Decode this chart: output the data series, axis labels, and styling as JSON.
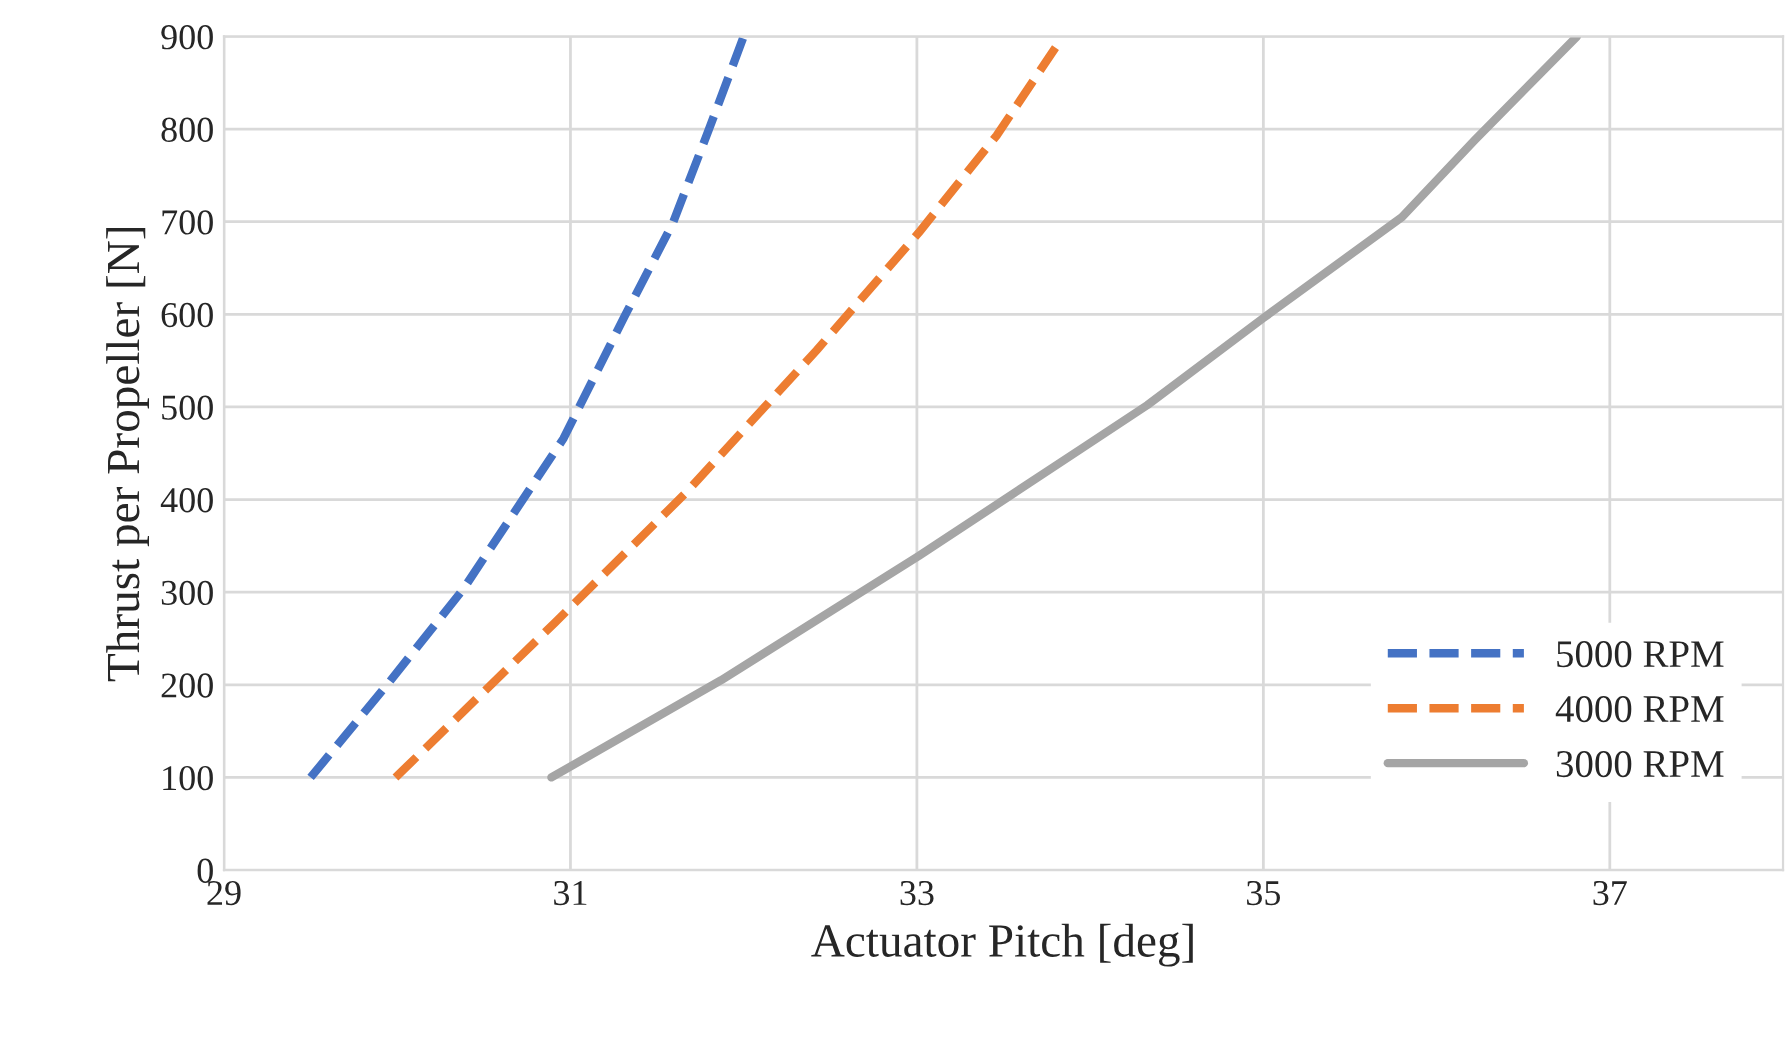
{
  "chart_data": {
    "type": "line",
    "xlabel": "Actuator Pitch [deg]",
    "ylabel": "Thrust per Propeller [N]",
    "xlim": [
      29,
      38
    ],
    "xticks": [
      29,
      31,
      33,
      35,
      37
    ],
    "ylim": [
      0,
      900
    ],
    "yticks": [
      0,
      100,
      200,
      300,
      400,
      500,
      600,
      700,
      800,
      900
    ],
    "grid": true,
    "legend": "bottom right",
    "marker": "none",
    "series": [
      {
        "name": "5000 RPM",
        "color": "#4472c4",
        "line_style": "dashed",
        "x": [
          29.5,
          29.95,
          30.38,
          30.96,
          31.31,
          31.59,
          31.8,
          32.0
        ],
        "values": [
          100,
          202,
          303,
          466,
          597,
          698,
          800,
          900
        ]
      },
      {
        "name": "4000 RPM",
        "color": "#ed7d31",
        "line_style": "dashed",
        "x": [
          29.99,
          30.91,
          31.67,
          32.42,
          33.01,
          33.46,
          33.8
        ],
        "values": [
          100,
          267,
          408,
          561,
          688,
          793,
          888
        ]
      },
      {
        "name": "3000 RPM",
        "color": "#a5a5a5",
        "line_style": "solid",
        "x": [
          30.89,
          31.87,
          33.01,
          33.95,
          34.33,
          35.0,
          35.8,
          36.22,
          36.81
        ],
        "values": [
          100,
          205,
          339,
          455,
          502,
          596,
          705,
          788,
          900
        ]
      }
    ]
  }
}
